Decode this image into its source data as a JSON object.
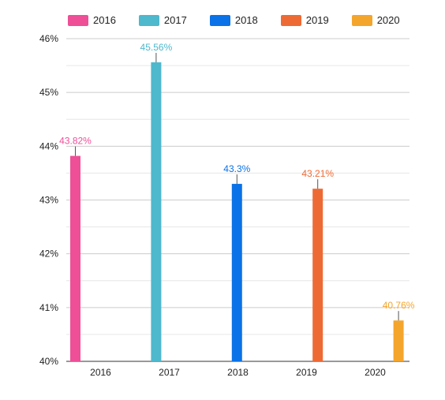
{
  "chart_data": {
    "type": "bar",
    "categories": [
      "2016",
      "2017",
      "2018",
      "2019",
      "2020"
    ],
    "series": [
      {
        "name": "2016",
        "color": "#EE4F97",
        "values": [
          43.82,
          null,
          null,
          null,
          null
        ],
        "labels": [
          "43.82%",
          "",
          "",
          "",
          ""
        ]
      },
      {
        "name": "2017",
        "color": "#4EB8CD",
        "values": [
          null,
          45.56,
          null,
          null,
          null
        ],
        "labels": [
          "",
          "45.56%",
          "",
          "",
          ""
        ]
      },
      {
        "name": "2018",
        "color": "#0B72E7",
        "values": [
          null,
          null,
          43.3,
          null,
          null
        ],
        "labels": [
          "",
          "",
          "43.3%",
          "",
          ""
        ]
      },
      {
        "name": "2019",
        "color": "#EE6A34",
        "values": [
          null,
          null,
          null,
          43.21,
          null
        ],
        "labels": [
          "",
          "",
          "",
          "43.21%",
          ""
        ]
      },
      {
        "name": "2020",
        "color": "#F4A52C",
        "values": [
          null,
          null,
          null,
          null,
          40.76
        ],
        "labels": [
          "",
          "",
          "",
          "",
          "40.76%"
        ]
      }
    ],
    "yticks": [
      "40%",
      "41%",
      "42%",
      "43%",
      "44%",
      "45%",
      "46%"
    ],
    "ylim": [
      40,
      46
    ],
    "grid": true,
    "legend_position": "top",
    "title": "",
    "xlabel": "",
    "ylabel": ""
  }
}
